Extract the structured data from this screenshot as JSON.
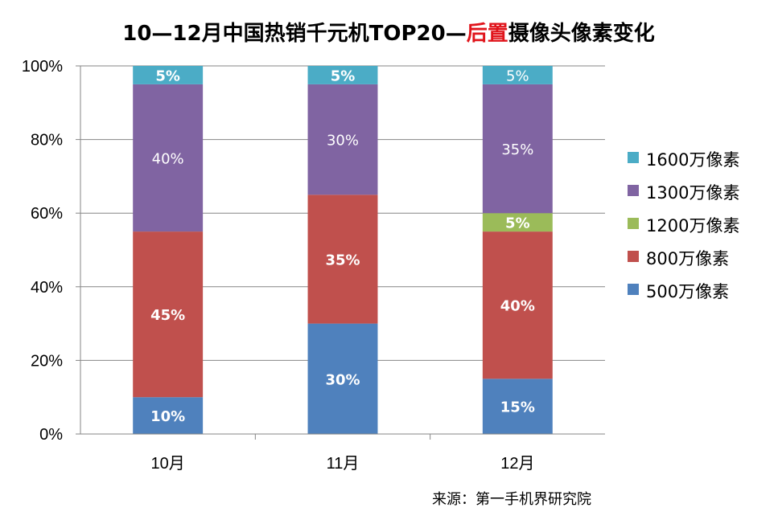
{
  "chart_data": {
    "type": "bar",
    "stacked": true,
    "title": {
      "part1": "10—12月中国热销千元机TOP20—",
      "highlight": "后置",
      "part2": "摄像头像素变化"
    },
    "categories": [
      "10月",
      "11月",
      "12月"
    ],
    "series": [
      {
        "name": "500万像素",
        "color": "#4f81bd",
        "values": [
          10,
          30,
          15
        ],
        "labels": [
          "10%",
          "30%",
          "15%"
        ]
      },
      {
        "name": "800万像素",
        "color": "#c0504d",
        "values": [
          45,
          35,
          40
        ],
        "labels": [
          "45%",
          "35%",
          "40%"
        ]
      },
      {
        "name": "1200万像素",
        "color": "#9bbb59",
        "values": [
          0,
          0,
          5
        ],
        "labels": [
          "",
          "",
          "5%"
        ]
      },
      {
        "name": "1300万像素",
        "color": "#8064a2",
        "values": [
          40,
          30,
          35
        ],
        "labels": [
          "40%",
          "30%",
          "35%"
        ]
      },
      {
        "name": "1600万像素",
        "color": "#4bacc6",
        "values": [
          5,
          5,
          5
        ],
        "labels": [
          "5%",
          "5%",
          "5%"
        ]
      }
    ],
    "yticks": [
      "0%",
      "20%",
      "40%",
      "60%",
      "80%",
      "100%"
    ],
    "ylim": [
      0,
      100
    ],
    "grid": true,
    "legend_position": "right",
    "source": "来源：第一手机界研究院"
  }
}
